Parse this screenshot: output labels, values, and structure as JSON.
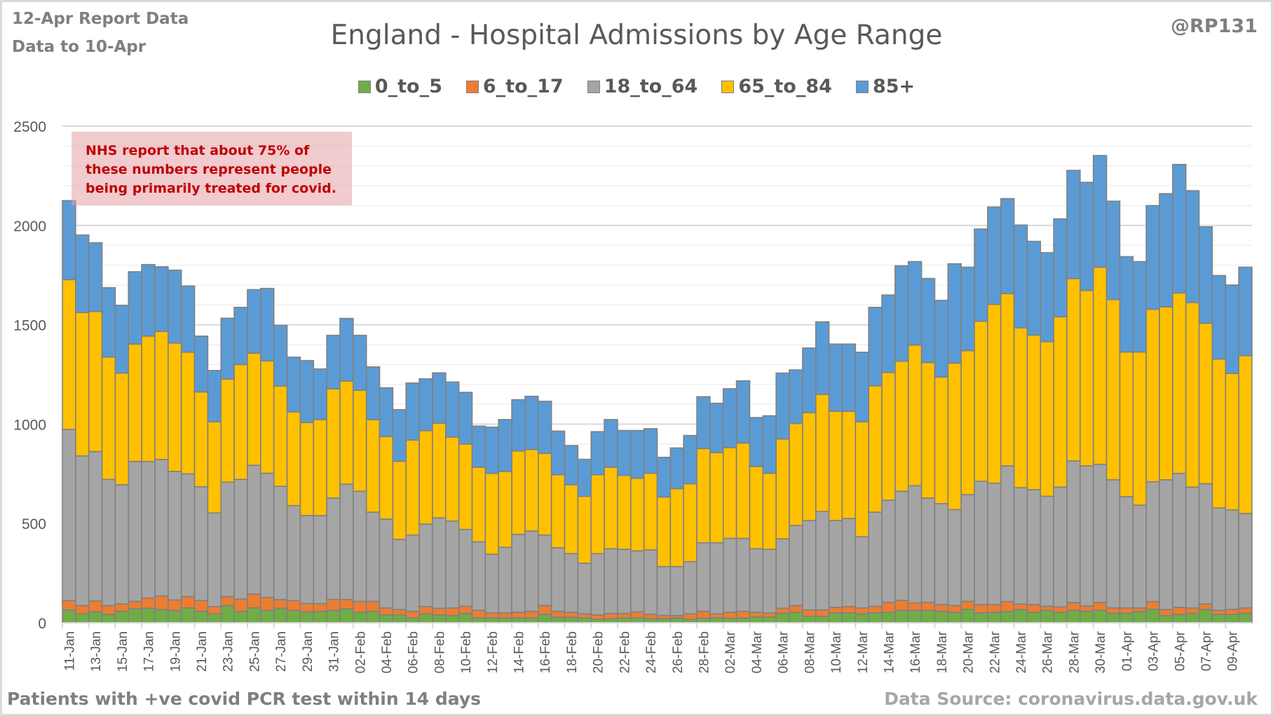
{
  "header": {
    "report_line": "12-Apr Report Data",
    "data_to_line": "Data to 10-Apr",
    "handle": "@RP131"
  },
  "annotation": "NHS report that about 75% of these numbers represent people being primarily treated for covid.",
  "footer": {
    "left": "Patients with  +ve covid PCR test within 14 days",
    "right": "Data Source: coronavirus.data.gov.uk"
  },
  "chart_data": {
    "type": "bar",
    "stacked": true,
    "title": "England - Hospital Admissions by Age Range",
    "xlabel": "",
    "ylabel": "",
    "ylim": [
      0,
      2500
    ],
    "yticks": [
      0,
      500,
      1000,
      1500,
      2000,
      2500
    ],
    "grid": true,
    "legend_position": "top",
    "categories": [
      "11-Jan",
      "12-Jan",
      "13-Jan",
      "14-Jan",
      "15-Jan",
      "16-Jan",
      "17-Jan",
      "18-Jan",
      "19-Jan",
      "20-Jan",
      "21-Jan",
      "22-Jan",
      "23-Jan",
      "24-Jan",
      "25-Jan",
      "26-Jan",
      "27-Jan",
      "28-Jan",
      "29-Jan",
      "30-Jan",
      "31-Jan",
      "01-Feb",
      "02-Feb",
      "03-Feb",
      "04-Feb",
      "05-Feb",
      "06-Feb",
      "07-Feb",
      "08-Feb",
      "09-Feb",
      "10-Feb",
      "11-Feb",
      "12-Feb",
      "13-Feb",
      "14-Feb",
      "15-Feb",
      "16-Feb",
      "17-Feb",
      "18-Feb",
      "19-Feb",
      "20-Feb",
      "21-Feb",
      "22-Feb",
      "23-Feb",
      "24-Feb",
      "25-Feb",
      "26-Feb",
      "27-Feb",
      "28-Feb",
      "01-Mar",
      "02-Mar",
      "03-Mar",
      "04-Mar",
      "05-Mar",
      "06-Mar",
      "07-Mar",
      "08-Mar",
      "09-Mar",
      "10-Mar",
      "11-Mar",
      "12-Mar",
      "13-Mar",
      "14-Mar",
      "15-Mar",
      "16-Mar",
      "17-Mar",
      "18-Mar",
      "19-Mar",
      "20-Mar",
      "21-Mar",
      "22-Mar",
      "23-Mar",
      "24-Mar",
      "25-Mar",
      "26-Mar",
      "27-Mar",
      "28-Mar",
      "29-Mar",
      "30-Mar",
      "31-Mar",
      "01-Apr",
      "02-Apr",
      "03-Apr",
      "04-Apr",
      "05-Apr",
      "06-Apr",
      "07-Apr",
      "08-Apr",
      "09-Apr",
      "10-Apr"
    ],
    "tick_labels_every": 2,
    "series": [
      {
        "name": "0_to_5",
        "color": "#70ad47",
        "values": [
          65,
          45,
          55,
          42,
          58,
          70,
          73,
          67,
          62,
          75,
          58,
          45,
          87,
          57,
          75,
          62,
          73,
          62,
          55,
          57,
          62,
          70,
          53,
          57,
          40,
          40,
          25,
          45,
          40,
          37,
          47,
          25,
          25,
          25,
          25,
          25,
          43,
          28,
          28,
          25,
          17,
          20,
          25,
          25,
          20,
          20,
          25,
          17,
          23,
          25,
          23,
          25,
          30,
          30,
          47,
          53,
          33,
          33,
          50,
          50,
          45,
          50,
          53,
          62,
          62,
          62,
          58,
          52,
          68,
          50,
          53,
          57,
          67,
          53,
          62,
          53,
          62,
          58,
          63,
          48,
          48,
          57,
          68,
          37,
          42,
          47,
          67,
          42,
          42,
          47
        ]
      },
      {
        "name": "6_to_17",
        "color": "#ed7d31",
        "values": [
          47,
          42,
          55,
          45,
          37,
          38,
          52,
          68,
          53,
          57,
          54,
          37,
          45,
          63,
          70,
          66,
          44,
          50,
          42,
          40,
          56,
          47,
          55,
          51,
          35,
          27,
          33,
          37,
          33,
          38,
          36,
          38,
          25,
          25,
          28,
          33,
          44,
          30,
          25,
          20,
          23,
          27,
          22,
          30,
          23,
          17,
          12,
          28,
          35,
          20,
          30,
          33,
          23,
          20,
          26,
          34,
          32,
          32,
          28,
          32,
          30,
          33,
          50,
          51,
          38,
          41,
          34,
          35,
          40,
          42,
          39,
          50,
          28,
          39,
          21,
          27,
          40,
          27,
          40,
          27,
          27,
          18,
          39,
          30,
          36,
          28,
          28,
          21,
          26,
          28
        ]
      },
      {
        "name": "18_to_64",
        "color": "#a5a5a5",
        "values": [
          861,
          753,
          752,
          635,
          600,
          704,
          687,
          687,
          647,
          618,
          573,
          471,
          576,
          602,
          648,
          625,
          570,
          478,
          443,
          443,
          510,
          581,
          554,
          449,
          447,
          353,
          384,
          415,
          455,
          437,
          387,
          345,
          295,
          330,
          392,
          404,
          355,
          320,
          295,
          255,
          308,
          326,
          323,
          307,
          324,
          246,
          246,
          263,
          345,
          358,
          372,
          367,
          320,
          320,
          350,
          403,
          450,
          495,
          437,
          443,
          358,
          474,
          514,
          549,
          590,
          525,
          508,
          483,
          537,
          620,
          611,
          683,
          585,
          578,
          554,
          603,
          713,
          705,
          695,
          645,
          560,
          517,
          603,
          653,
          674,
          608,
          605,
          515,
          500,
          475
        ]
      },
      {
        "name": "65_to_84",
        "color": "#ffc000",
        "values": [
          754,
          722,
          705,
          616,
          562,
          591,
          631,
          645,
          646,
          612,
          477,
          459,
          519,
          578,
          564,
          565,
          505,
          472,
          468,
          483,
          550,
          519,
          508,
          466,
          416,
          393,
          478,
          470,
          477,
          423,
          430,
          375,
          407,
          382,
          420,
          410,
          411,
          367,
          347,
          337,
          397,
          410,
          372,
          366,
          386,
          350,
          392,
          392,
          474,
          454,
          457,
          480,
          414,
          383,
          502,
          513,
          543,
          590,
          550,
          540,
          579,
          636,
          643,
          655,
          708,
          682,
          637,
          737,
          725,
          806,
          900,
          867,
          805,
          778,
          778,
          857,
          918,
          883,
          992,
          907,
          728,
          771,
          868,
          870,
          908,
          929,
          808,
          750,
          687,
          795
        ]
      },
      {
        "name": "85+",
        "color": "#5b9bd5",
        "values": [
          398,
          390,
          346,
          349,
          341,
          364,
          360,
          325,
          367,
          333,
          281,
          258,
          306,
          288,
          320,
          365,
          305,
          275,
          312,
          255,
          269,
          315,
          277,
          265,
          245,
          260,
          287,
          261,
          253,
          277,
          260,
          207,
          233,
          261,
          258,
          268,
          262,
          220,
          197,
          186,
          217,
          240,
          226,
          240,
          224,
          200,
          205,
          243,
          261,
          248,
          296,
          313,
          246,
          289,
          332,
          270,
          325,
          365,
          338,
          338,
          350,
          395,
          390,
          480,
          420,
          423,
          386,
          500,
          420,
          464,
          490,
          478,
          517,
          472,
          448,
          493,
          544,
          544,
          562,
          495,
          480,
          455,
          522,
          570,
          647,
          563,
          485,
          420,
          445,
          445
        ]
      }
    ]
  }
}
